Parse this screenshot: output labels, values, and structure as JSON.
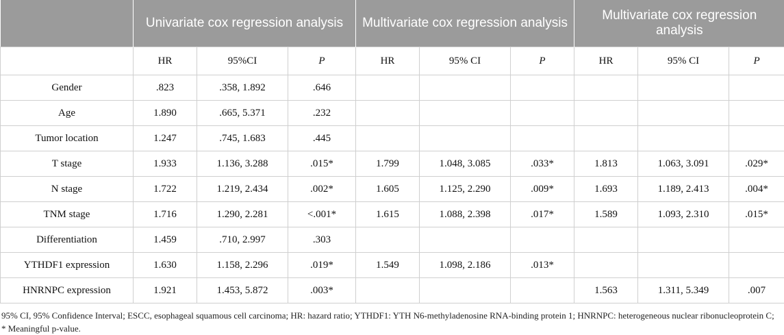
{
  "groups": [
    "Univariate cox regression analysis",
    "Multivariate cox regression analysis",
    "Multivariate cox regression analysis"
  ],
  "subheaders": [
    "",
    "HR",
    "95%CI",
    "P",
    "HR",
    "95% CI",
    "P",
    "HR",
    "95% CI",
    "P"
  ],
  "rows": [
    [
      "Gender",
      ".823",
      ".358, 1.892",
      ".646",
      "",
      "",
      "",
      "",
      "",
      ""
    ],
    [
      "Age",
      "1.890",
      ".665, 5.371",
      ".232",
      "",
      "",
      "",
      "",
      "",
      ""
    ],
    [
      "Tumor location",
      "1.247",
      ".745, 1.683",
      ".445",
      "",
      "",
      "",
      "",
      "",
      ""
    ],
    [
      "T stage",
      "1.933",
      "1.136, 3.288",
      ".015*",
      "1.799",
      "1.048, 3.085",
      ".033*",
      "1.813",
      "1.063, 3.091",
      ".029*"
    ],
    [
      "N stage",
      "1.722",
      "1.219, 2.434",
      ".002*",
      "1.605",
      "1.125, 2.290",
      ".009*",
      "1.693",
      "1.189, 2.413",
      ".004*"
    ],
    [
      "TNM stage",
      "1.716",
      "1.290, 2.281",
      "<.001*",
      "1.615",
      "1.088, 2.398",
      ".017*",
      "1.589",
      "1.093, 2.310",
      ".015*"
    ],
    [
      "Differentiation",
      "1.459",
      ".710, 2.997",
      ".303",
      "",
      "",
      "",
      "",
      "",
      ""
    ],
    [
      "YTHDF1 expression",
      "1.630",
      "1.158, 2.296",
      ".019*",
      "1.549",
      "1.098, 2.186",
      ".013*",
      "",
      "",
      ""
    ],
    [
      "HNRNPC expression",
      "1.921",
      "1.453, 5.872",
      ".003*",
      "",
      "",
      "",
      "1.563",
      "1.311, 5.349",
      ".007"
    ]
  ],
  "footnote": "95% CI, 95% Confidence Interval; ESCC, esophageal squamous cell carcinoma; HR: hazard ratio; YTHDF1: YTH N6-methyladenosine RNA-binding protein 1; HNRNPC: heterogeneous nuclear ribonucleoprotein C; * Meaningful p-value."
}
